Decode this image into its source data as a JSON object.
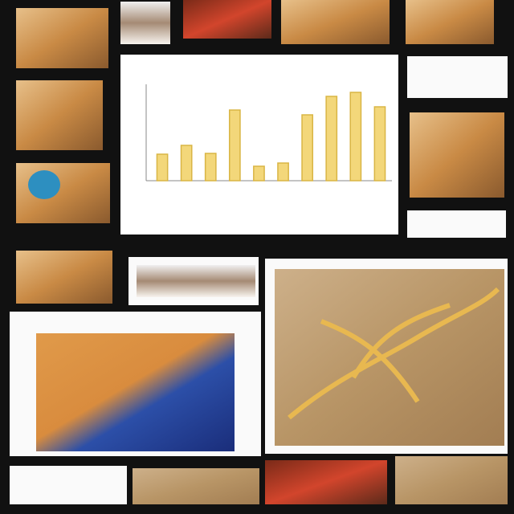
{
  "chart_data": {
    "type": "bar",
    "categories": [
      null,
      null,
      null,
      null,
      null,
      null,
      null,
      null,
      null,
      null
    ],
    "values": [
      33,
      44,
      34,
      88,
      18,
      22,
      82,
      105,
      110,
      92
    ],
    "color": "#f3d77a",
    "ylim": [
      0,
      120
    ]
  }
}
